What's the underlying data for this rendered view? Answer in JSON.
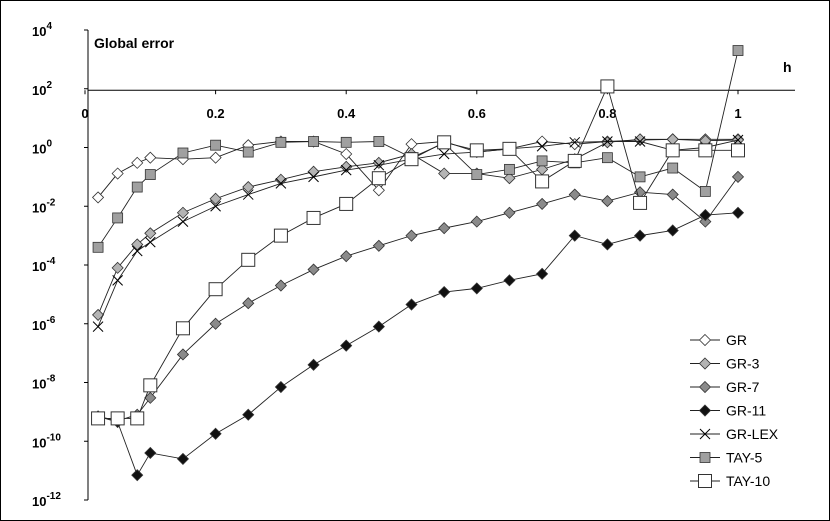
{
  "chart_data": {
    "type": "line",
    "title": "Global error",
    "xlabel": "h",
    "ylabel": "",
    "xlim": [
      0,
      1.1
    ],
    "ylim_log10": [
      -12,
      4
    ],
    "y_scale": "log",
    "x_ticks": [
      "0",
      "0.2",
      "0.4",
      "0.6",
      "0.8",
      "1"
    ],
    "y_ticks": [
      {
        "base": "10",
        "exp": "4"
      },
      {
        "base": "10",
        "exp": "2"
      },
      {
        "base": "10",
        "exp": "0"
      },
      {
        "base": "10",
        "exp": "-2"
      },
      {
        "base": "10",
        "exp": "-4"
      },
      {
        "base": "10",
        "exp": "-6"
      },
      {
        "base": "10",
        "exp": "-8"
      },
      {
        "base": "10",
        "exp": "-10"
      },
      {
        "base": "10",
        "exp": "-12"
      }
    ],
    "legend_position": "bottom-right",
    "grid": false,
    "series": [
      {
        "name": "GR",
        "marker": "diamond-open",
        "color": "#ffffff",
        "x": [
          0.02,
          0.05,
          0.08,
          0.1,
          0.15,
          0.2,
          0.25,
          0.3,
          0.35,
          0.4,
          0.45,
          0.5,
          0.55,
          0.6,
          0.65,
          0.7,
          0.75,
          0.8,
          0.85,
          0.9,
          0.95,
          1.0
        ],
        "y": [
          0.02,
          0.13,
          0.3,
          0.45,
          0.4,
          0.45,
          1.2,
          1.6,
          1.6,
          0.6,
          0.035,
          1.3,
          1.6,
          0.7,
          0.9,
          1.6,
          1.3,
          1.6,
          1.8,
          1.9,
          1.9,
          1.9
        ]
      },
      {
        "name": "GR-3",
        "marker": "diamond",
        "color": "#b4b4b4",
        "x": [
          0.02,
          0.05,
          0.08,
          0.1,
          0.15,
          0.2,
          0.25,
          0.3,
          0.35,
          0.4,
          0.45,
          0.5,
          0.55,
          0.6,
          0.65,
          0.7,
          0.75,
          0.8,
          0.85,
          0.9,
          0.95,
          1.0
        ],
        "y": [
          2e-06,
          8e-05,
          0.0005,
          0.0012,
          0.006,
          0.018,
          0.045,
          0.08,
          0.15,
          0.22,
          0.3,
          0.6,
          0.13,
          0.13,
          0.09,
          0.18,
          0.4,
          1.5,
          1.9,
          1.9,
          1.7,
          1.8
        ]
      },
      {
        "name": "GR-7",
        "marker": "diamond",
        "color": "#8a8a8a",
        "x": [
          0.02,
          0.05,
          0.08,
          0.1,
          0.15,
          0.2,
          0.25,
          0.3,
          0.35,
          0.4,
          0.45,
          0.5,
          0.55,
          0.6,
          0.65,
          0.7,
          0.75,
          0.8,
          0.85,
          0.9,
          0.95,
          1.0
        ],
        "y": [
          7e-10,
          5e-10,
          8e-10,
          3e-09,
          9e-08,
          1e-06,
          5e-06,
          2e-05,
          7e-05,
          0.0002,
          0.00045,
          0.001,
          0.0018,
          0.003,
          0.006,
          0.012,
          0.025,
          0.015,
          0.03,
          0.025,
          0.003,
          0.1
        ]
      },
      {
        "name": "GR-11",
        "marker": "diamond",
        "color": "#111111",
        "x": [
          0.02,
          0.05,
          0.08,
          0.1,
          0.15,
          0.2,
          0.25,
          0.3,
          0.35,
          0.4,
          0.45,
          0.5,
          0.55,
          0.6,
          0.65,
          0.7,
          0.75,
          0.8,
          0.85,
          0.9,
          0.95,
          1.0
        ],
        "y": [
          7e-10,
          4.5e-10,
          7e-12,
          4e-11,
          2.5e-11,
          1.8e-10,
          8e-10,
          7e-09,
          4e-08,
          1.8e-07,
          8e-07,
          4.5e-06,
          1.2e-05,
          1.6e-05,
          3e-05,
          5e-05,
          0.001,
          0.0005,
          0.001,
          0.0015,
          0.005,
          0.006
        ]
      },
      {
        "name": "GR-LEX",
        "marker": "x",
        "color": "#000000",
        "x": [
          0.02,
          0.05,
          0.08,
          0.1,
          0.15,
          0.2,
          0.25,
          0.3,
          0.35,
          0.4,
          0.45,
          0.5,
          0.55,
          0.6,
          0.65,
          0.7,
          0.75,
          0.8,
          0.85,
          0.9,
          0.95,
          1.0
        ],
        "y": [
          8e-07,
          3e-05,
          0.0003,
          0.0006,
          0.003,
          0.01,
          0.025,
          0.06,
          0.1,
          0.17,
          0.25,
          0.4,
          0.6,
          0.7,
          0.9,
          1.1,
          1.5,
          1.6,
          1.6,
          0.8,
          1.0,
          1.8
        ]
      },
      {
        "name": "TAY-5",
        "marker": "square",
        "color": "#a0a0a0",
        "x": [
          0.02,
          0.05,
          0.08,
          0.1,
          0.15,
          0.2,
          0.25,
          0.3,
          0.35,
          0.4,
          0.45,
          0.5,
          0.55,
          0.6,
          0.65,
          0.7,
          0.75,
          0.8,
          0.85,
          0.9,
          0.95,
          1.0
        ],
        "y": [
          0.0004,
          0.004,
          0.045,
          0.12,
          0.65,
          1.2,
          0.7,
          1.5,
          1.6,
          1.5,
          1.6,
          0.45,
          1.4,
          0.12,
          0.18,
          0.35,
          0.3,
          0.45,
          0.1,
          0.2,
          0.032,
          2000
        ]
      },
      {
        "name": "TAY-10",
        "marker": "square-open",
        "color": "#ffffff",
        "x": [
          0.02,
          0.05,
          0.08,
          0.1,
          0.15,
          0.2,
          0.25,
          0.3,
          0.35,
          0.4,
          0.45,
          0.5,
          0.55,
          0.6,
          0.65,
          0.7,
          0.75,
          0.8,
          0.85,
          0.9,
          0.95,
          1.0
        ],
        "y": [
          6e-10,
          6e-10,
          6e-10,
          8e-09,
          7e-07,
          1.5e-05,
          0.00015,
          0.001,
          0.004,
          0.012,
          0.09,
          0.4,
          1.5,
          0.8,
          0.9,
          0.07,
          0.35,
          120,
          0.013,
          0.8,
          0.8,
          0.8
        ]
      }
    ]
  }
}
